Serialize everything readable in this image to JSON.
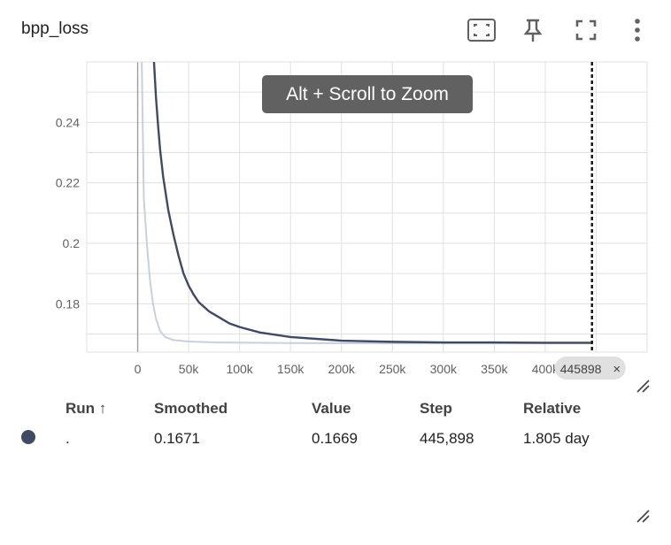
{
  "card": {
    "title": "bpp_loss"
  },
  "toolbar": {
    "fit_icon": "fit-domain-icon",
    "pin_icon": "pin-icon",
    "fullscreen_icon": "fullscreen-icon",
    "more_icon": "more-vert-icon"
  },
  "tooltip": {
    "text": "Alt + Scroll to Zoom"
  },
  "cursor_label": {
    "text": "445898",
    "close": "×"
  },
  "colors": {
    "smoothed": "#3f4b63",
    "raw": "#c9d0dc",
    "grid": "#e0e0e0"
  },
  "chart_data": {
    "type": "line",
    "title": "bpp_loss",
    "xlabel": "",
    "ylabel": "",
    "xlim": [
      -50000,
      500000
    ],
    "ylim": [
      0.164,
      0.26
    ],
    "x_ticks": [
      "0",
      "50k",
      "100k",
      "150k",
      "200k",
      "250k",
      "300k",
      "350k",
      "400k"
    ],
    "y_ticks": [
      "0.18",
      "0.2",
      "0.22",
      "0.24"
    ],
    "cursor_x": 445898,
    "grid": true,
    "series": [
      {
        "role": "raw",
        "x": [
          4000,
          6000,
          9000,
          12000,
          15000,
          18000,
          22000,
          27000,
          35000,
          50000,
          80000,
          150000,
          250000,
          350000,
          445898
        ],
        "y": [
          0.26,
          0.215,
          0.2,
          0.188,
          0.18,
          0.175,
          0.171,
          0.169,
          0.168,
          0.1675,
          0.1672,
          0.167,
          0.1669,
          0.1669,
          0.1669
        ]
      },
      {
        "role": "smoothed",
        "x": [
          16000,
          18000,
          20000,
          22000,
          25000,
          30000,
          35000,
          40000,
          45000,
          50000,
          55000,
          60000,
          70000,
          80000,
          90000,
          100000,
          120000,
          150000,
          200000,
          250000,
          300000,
          350000,
          400000,
          445898
        ],
        "y": [
          0.26,
          0.248,
          0.239,
          0.231,
          0.222,
          0.211,
          0.203,
          0.196,
          0.19,
          0.186,
          0.183,
          0.1805,
          0.1775,
          0.1755,
          0.1735,
          0.1723,
          0.1705,
          0.169,
          0.1678,
          0.1674,
          0.1672,
          0.1672,
          0.1671,
          0.1671
        ]
      }
    ]
  },
  "table": {
    "headers": {
      "run": "Run ↑",
      "smoothed": "Smoothed",
      "value": "Value",
      "step": "Step",
      "relative": "Relative"
    },
    "rows": [
      {
        "run": ".",
        "smoothed": "0.1671",
        "value": "0.1669",
        "step": "445,898",
        "relative": "1.805 day"
      }
    ]
  }
}
